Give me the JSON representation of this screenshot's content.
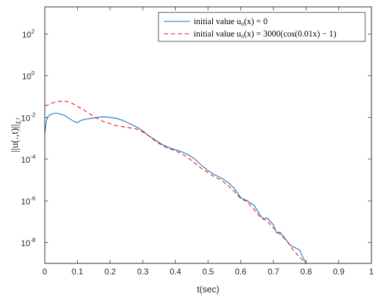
{
  "chart_data": {
    "type": "line",
    "title": "",
    "xlabel": "t(sec)",
    "ylabel": "||u(.,t)||",
    "ylabel_subscript": "L²",
    "xlim": [
      0,
      1
    ],
    "ylim_log10": [
      -9,
      3.3
    ],
    "yscale": "log",
    "grid": false,
    "legend_placement": "top-right",
    "x_ticks": [
      "0",
      "0.1",
      "0.2",
      "0.3",
      "0.4",
      "0.5",
      "0.6",
      "0.7",
      "0.8",
      "0.9",
      "1"
    ],
    "x_tick_values": [
      0,
      0.1,
      0.2,
      0.3,
      0.4,
      0.5,
      0.6,
      0.7,
      0.8,
      0.9,
      1
    ],
    "y_tick_exponents": [
      -8,
      -6,
      -4,
      -2,
      0,
      2
    ],
    "y_tick_base": "10",
    "y_tick_labels": [
      "10",
      "10",
      "10",
      "10",
      "10",
      "10"
    ],
    "y_tick_exponent_labels": [
      "-8",
      "-6",
      "-4",
      "-2",
      "0",
      "2"
    ],
    "series": [
      {
        "name": "initial value u₀(x) = 0",
        "color": "#0072BD",
        "dash": "solid",
        "x": [
          0,
          0.002,
          0.005,
          0.01,
          0.02,
          0.03,
          0.04,
          0.05,
          0.06,
          0.07,
          0.08,
          0.09,
          0.1,
          0.11,
          0.12,
          0.14,
          0.16,
          0.18,
          0.2,
          0.22,
          0.24,
          0.26,
          0.28,
          0.3,
          0.32,
          0.34,
          0.36,
          0.38,
          0.4,
          0.42,
          0.44,
          0.46,
          0.48,
          0.5,
          0.52,
          0.54,
          0.56,
          0.58,
          0.6,
          0.62,
          0.64,
          0.66,
          0.67,
          0.68,
          0.7,
          0.71,
          0.72,
          0.74,
          0.75,
          0.76,
          0.78,
          0.79,
          0.8,
          0.81
        ],
        "y_log10": [
          -2.8,
          -2.5,
          -2.15,
          -1.95,
          -1.85,
          -1.8,
          -1.8,
          -1.85,
          -1.9,
          -2.0,
          -2.1,
          -2.2,
          -2.25,
          -2.15,
          -2.1,
          -2.05,
          -2.0,
          -1.97,
          -2.0,
          -2.05,
          -2.15,
          -2.3,
          -2.45,
          -2.65,
          -2.9,
          -3.1,
          -3.3,
          -3.45,
          -3.55,
          -3.65,
          -3.8,
          -4.0,
          -4.3,
          -4.55,
          -4.75,
          -4.9,
          -5.1,
          -5.4,
          -5.85,
          -6.0,
          -6.2,
          -6.7,
          -6.9,
          -6.8,
          -7.15,
          -7.55,
          -7.5,
          -7.9,
          -8.1,
          -8.2,
          -8.35,
          -8.7,
          -9.0,
          -9.3
        ]
      },
      {
        "name": "initial value u₀(x) = 3000(cos(0.01x) − 1)",
        "color": "#FF0000",
        "dash": "dashed",
        "x": [
          0,
          0.01,
          0.02,
          0.03,
          0.04,
          0.05,
          0.06,
          0.07,
          0.08,
          0.09,
          0.1,
          0.12,
          0.14,
          0.16,
          0.18,
          0.2,
          0.22,
          0.24,
          0.26,
          0.28,
          0.3,
          0.32,
          0.34,
          0.36,
          0.38,
          0.4,
          0.42,
          0.44,
          0.46,
          0.48,
          0.5,
          0.52,
          0.54,
          0.56,
          0.58,
          0.6,
          0.62,
          0.64,
          0.66,
          0.67,
          0.68,
          0.7,
          0.72,
          0.74,
          0.76,
          0.78,
          0.8,
          0.81
        ],
        "y_log10": [
          -1.45,
          -1.4,
          -1.33,
          -1.27,
          -1.24,
          -1.22,
          -1.22,
          -1.25,
          -1.3,
          -1.38,
          -1.47,
          -1.65,
          -1.85,
          -2.05,
          -2.2,
          -2.3,
          -2.4,
          -2.45,
          -2.5,
          -2.55,
          -2.7,
          -2.9,
          -3.15,
          -3.35,
          -3.5,
          -3.6,
          -3.75,
          -3.95,
          -4.2,
          -4.45,
          -4.65,
          -4.85,
          -5.0,
          -5.25,
          -5.55,
          -5.9,
          -6.05,
          -6.4,
          -6.8,
          -6.85,
          -6.95,
          -7.3,
          -7.6,
          -7.9,
          -8.35,
          -8.7,
          -9.0,
          -9.2
        ]
      }
    ]
  }
}
